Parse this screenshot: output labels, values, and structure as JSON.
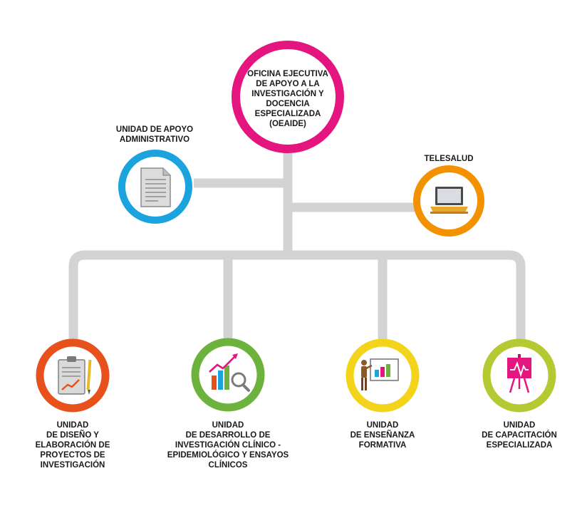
{
  "top_node": {
    "label": "OFICINA EJECUTIVA\nDE APOYO A LA\nINVESTIGACIÓN Y\nDOCENCIA\nESPECIALIZADA\n(OEAIDE)",
    "color": "#e5157f"
  },
  "admin_node": {
    "label": "UNIDAD DE APOYO\nADMINISTRATIVO",
    "color": "#1aa3dc",
    "icon": "document-icon"
  },
  "telesalud_node": {
    "label": "TELESALUD",
    "color": "#f39200",
    "icon": "laptop-icon"
  },
  "units": [
    {
      "label": "UNIDAD\nDE DISEÑO Y\nELABORACIÓN DE\nPROYECTOS DE\nINVESTIGACIÓN",
      "color": "#e8501c",
      "icon": "clipboard-chart-icon"
    },
    {
      "label": "UNIDAD\nDE DESARROLLO DE\nINVESTIGACIÓN CLÍNICO -\nEPIDEMIOLÓGICO Y ENSAYOS\nCLÍNICOS",
      "color": "#6cb23c",
      "icon": "growth-chart-magnifier-icon"
    },
    {
      "label": "UNIDAD\nDE ENSEÑANZA\nFORMATIVA",
      "color": "#f4d41a",
      "icon": "teacher-presentation-icon"
    },
    {
      "label": "UNIDAD\nDE CAPACITACIÓN\nESPECIALIZADA",
      "color": "#b5c932",
      "icon": "easel-chart-icon"
    }
  ],
  "connector_color": "#d3d3d3"
}
